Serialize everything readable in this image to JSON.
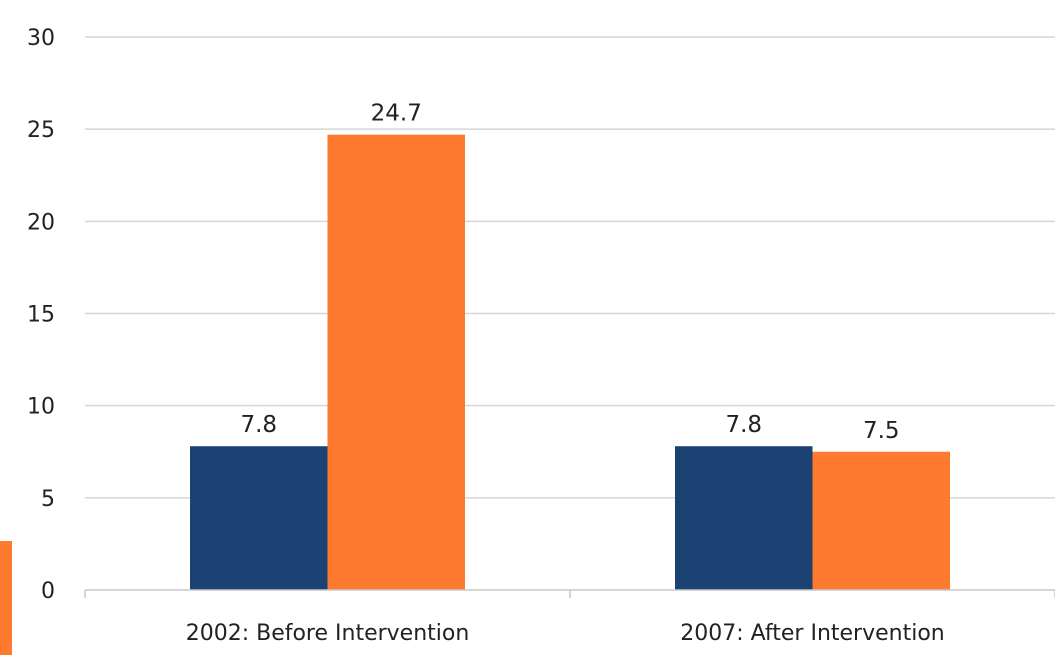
{
  "chart_data": {
    "type": "bar",
    "categories": [
      "2002: Before Intervention",
      "2007: After Intervention"
    ],
    "series": [
      {
        "values": [
          7.8,
          7.8
        ],
        "color": "#1b4272"
      },
      {
        "values": [
          24.7,
          7.5
        ],
        "color": "#fd7a2e"
      }
    ],
    "ylim": [
      0,
      30
    ],
    "yticks": [
      0,
      5,
      10,
      15,
      20,
      25,
      30
    ],
    "data_labels": true,
    "grid": true,
    "legend": "none"
  }
}
